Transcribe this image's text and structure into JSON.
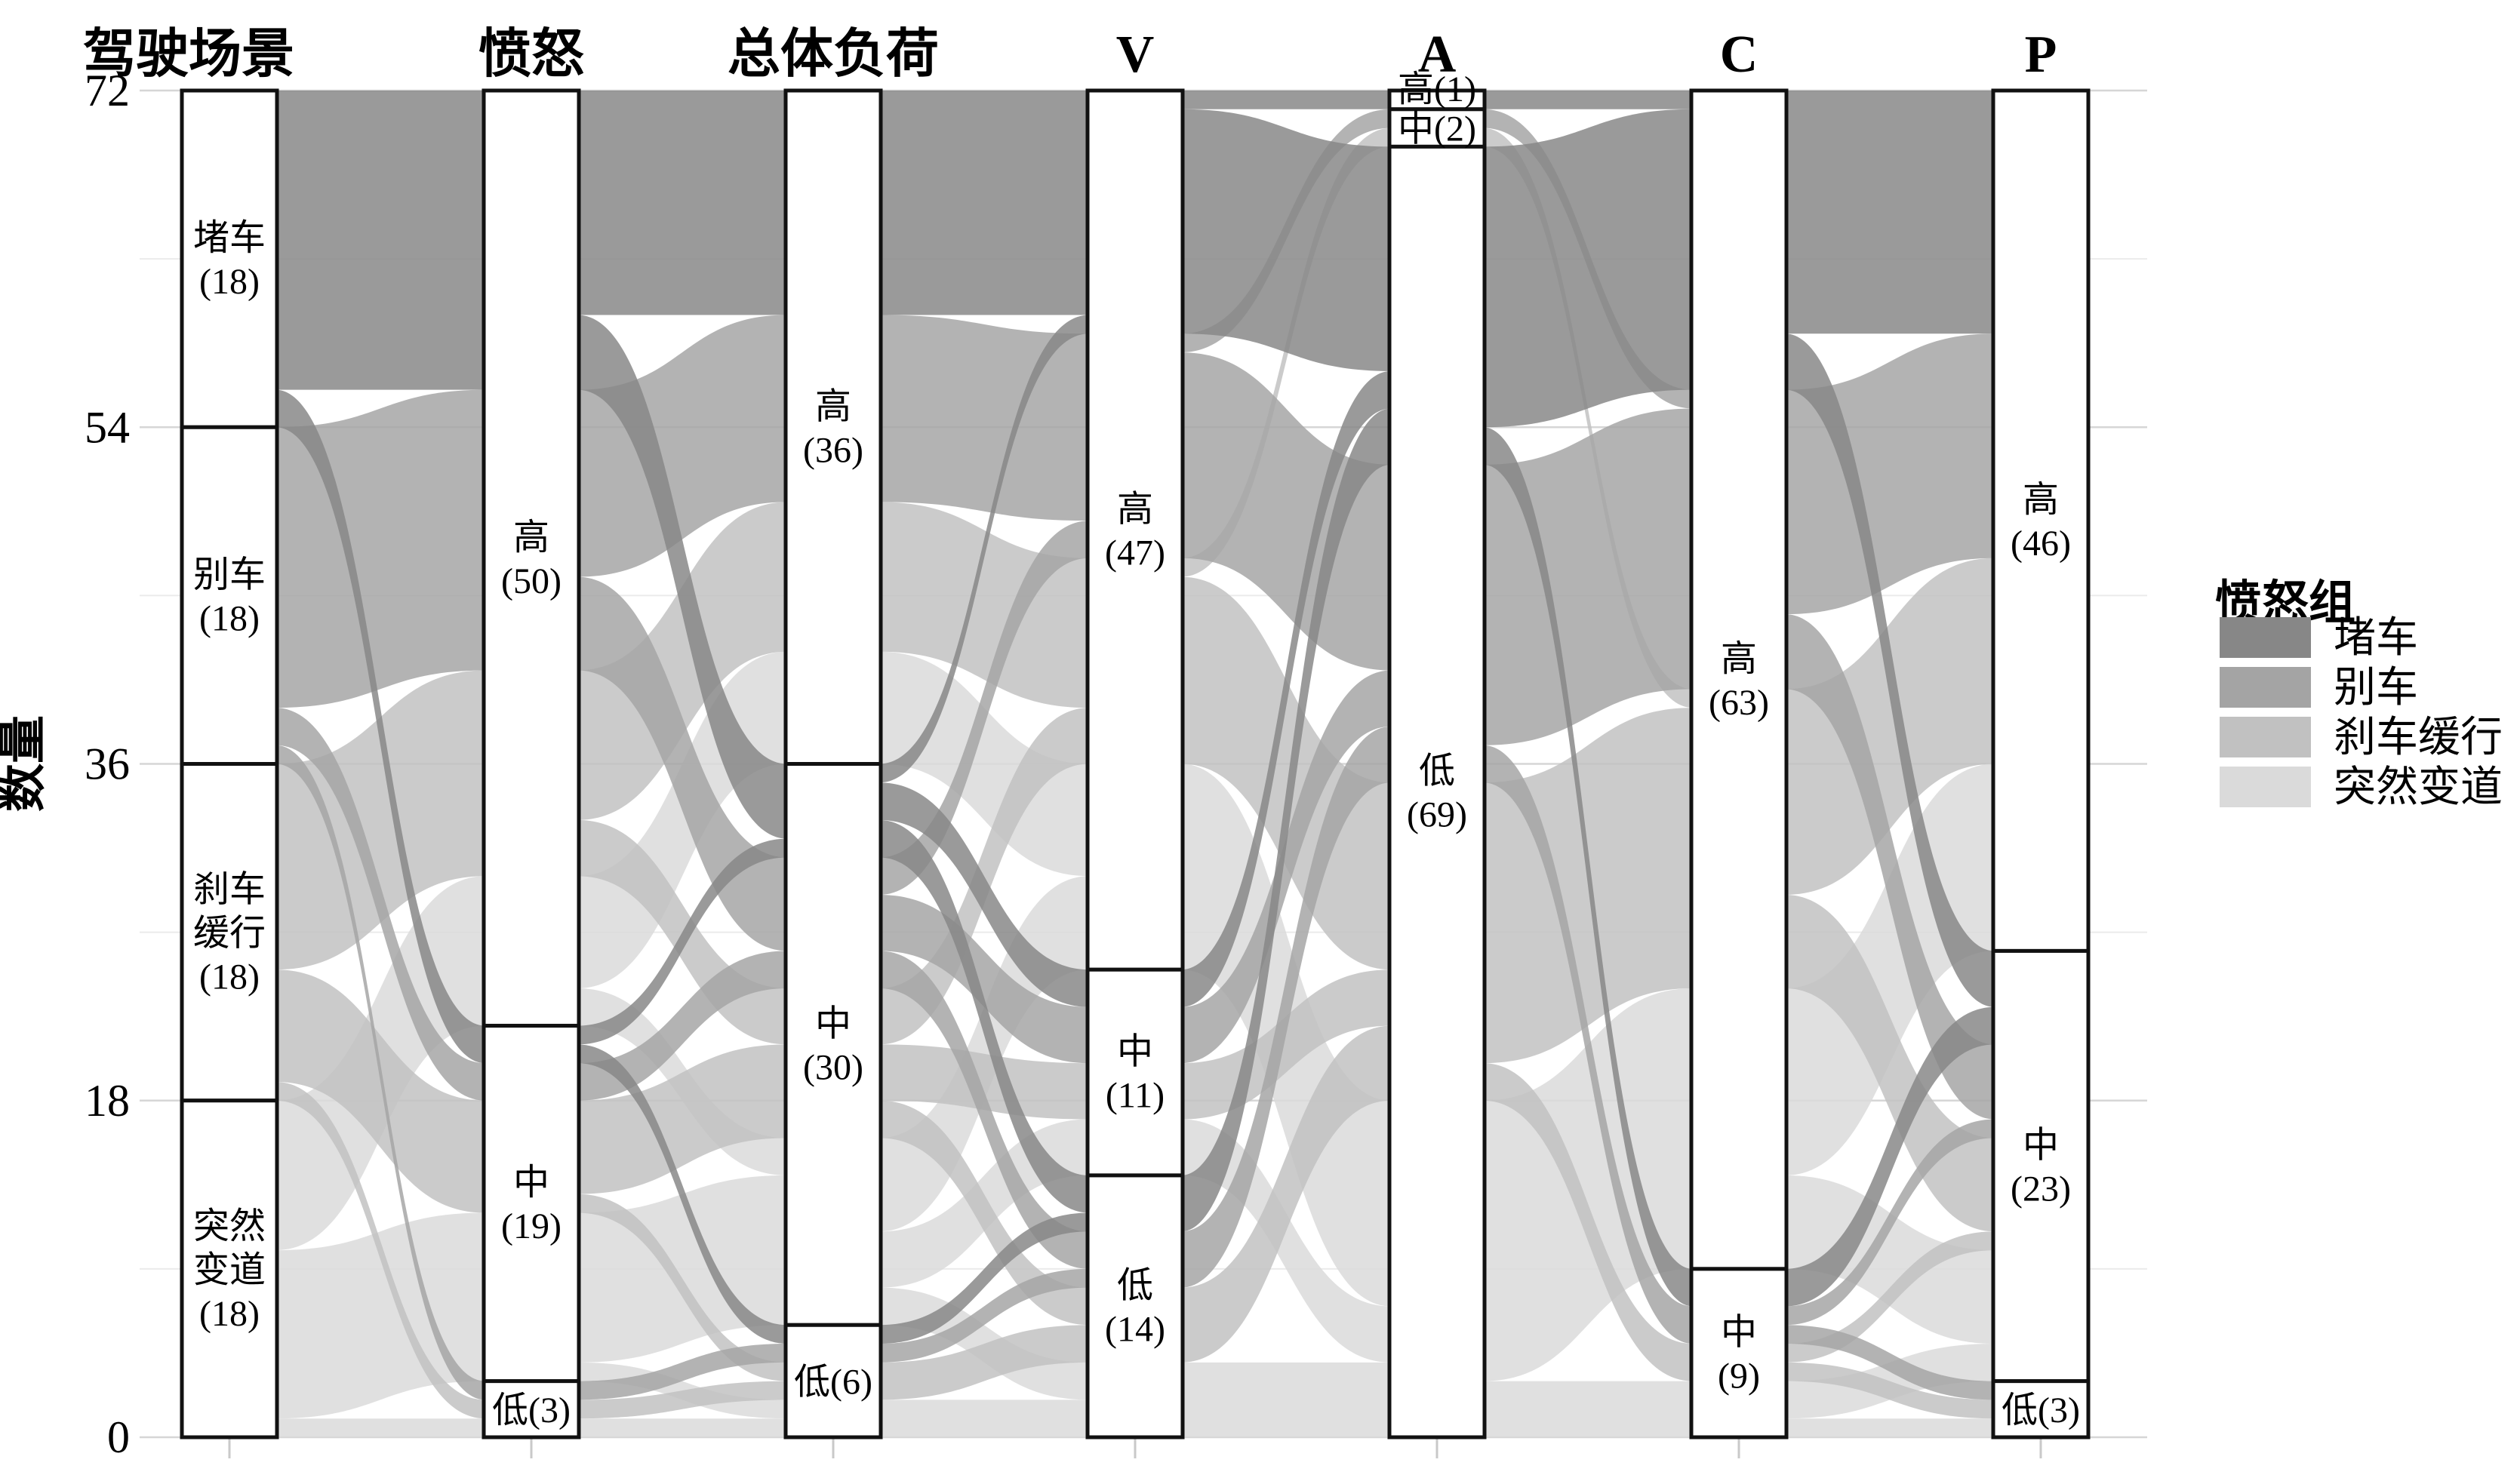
{
  "y_axis": {
    "title": "数量",
    "ticks": [
      0,
      18,
      36,
      54,
      72
    ],
    "tick_labels": [
      "0",
      "18",
      "36",
      "54",
      "72"
    ],
    "minor_ticks": [
      9,
      27,
      45,
      63
    ],
    "max": 72
  },
  "legend": {
    "title": "愤怒组",
    "items": [
      {
        "label": "堵车",
        "color": "#878787"
      },
      {
        "label": "别车",
        "color": "#a4a4a4"
      },
      {
        "label": "刹车缓行",
        "color": "#c1c1c1"
      },
      {
        "label": "突然变道",
        "color": "#dadada"
      }
    ]
  },
  "chart_data": {
    "type": "alluvial",
    "title": "",
    "ylabel": "数量",
    "ylim": [
      0,
      72
    ],
    "grid": "on",
    "legend_position": "right",
    "groups": [
      "堵车",
      "别车",
      "刹车缓行",
      "突然变道"
    ],
    "group_colors": [
      "#878787",
      "#a4a4a4",
      "#c1c1c1",
      "#dadada"
    ],
    "axes": [
      {
        "label": "驾驶场景",
        "nodes": [
          {
            "label": "堵车",
            "value": 18
          },
          {
            "label": "别车",
            "value": 18
          },
          {
            "label": "刹车缓行",
            "value": 18
          },
          {
            "label": "突然变道",
            "value": 18
          }
        ]
      },
      {
        "label": "愤怒",
        "nodes": [
          {
            "label": "高",
            "value": 50
          },
          {
            "label": "中",
            "value": 19
          },
          {
            "label": "低",
            "value": 3
          }
        ]
      },
      {
        "label": "总体负荷",
        "nodes": [
          {
            "label": "高",
            "value": 36
          },
          {
            "label": "中",
            "value": 30
          },
          {
            "label": "低",
            "value": 6
          }
        ]
      },
      {
        "label": "V",
        "nodes": [
          {
            "label": "高",
            "value": 47
          },
          {
            "label": "中",
            "value": 11
          },
          {
            "label": "低",
            "value": 14
          }
        ]
      },
      {
        "label": "A",
        "nodes": [
          {
            "label": "高",
            "value": 1
          },
          {
            "label": "中",
            "value": 2
          },
          {
            "label": "低",
            "value": 69
          }
        ]
      },
      {
        "label": "C",
        "nodes": [
          {
            "label": "高",
            "value": 63
          },
          {
            "label": "中",
            "value": 9
          }
        ]
      },
      {
        "label": "P",
        "nodes": [
          {
            "label": "高",
            "value": 46
          },
          {
            "label": "中",
            "value": 23
          },
          {
            "label": "低",
            "value": 3
          }
        ]
      }
    ],
    "flow_format": [
      "axis_pair_index",
      "from_node_index",
      "to_node_index",
      "group_index",
      "value"
    ],
    "flows": [
      [
        0,
        0,
        0,
        0,
        16
      ],
      [
        0,
        0,
        1,
        0,
        2
      ],
      [
        0,
        1,
        0,
        1,
        15
      ],
      [
        0,
        1,
        1,
        1,
        2
      ],
      [
        0,
        1,
        2,
        1,
        1
      ],
      [
        0,
        2,
        0,
        2,
        11
      ],
      [
        0,
        2,
        1,
        2,
        6
      ],
      [
        0,
        2,
        2,
        2,
        1
      ],
      [
        0,
        3,
        0,
        3,
        8
      ],
      [
        0,
        3,
        1,
        3,
        9
      ],
      [
        0,
        3,
        2,
        3,
        1
      ],
      [
        1,
        0,
        0,
        0,
        12
      ],
      [
        1,
        0,
        1,
        0,
        4
      ],
      [
        1,
        1,
        1,
        0,
        1
      ],
      [
        1,
        1,
        2,
        0,
        1
      ],
      [
        1,
        0,
        0,
        1,
        10
      ],
      [
        1,
        0,
        1,
        1,
        5
      ],
      [
        1,
        1,
        1,
        1,
        2
      ],
      [
        1,
        2,
        2,
        1,
        1
      ],
      [
        1,
        0,
        0,
        2,
        8
      ],
      [
        1,
        0,
        1,
        2,
        3
      ],
      [
        1,
        1,
        1,
        2,
        5
      ],
      [
        1,
        1,
        2,
        2,
        1
      ],
      [
        1,
        2,
        2,
        2,
        1
      ],
      [
        1,
        0,
        0,
        3,
        6
      ],
      [
        1,
        0,
        1,
        3,
        2
      ],
      [
        1,
        1,
        1,
        3,
        8
      ],
      [
        1,
        1,
        2,
        3,
        1
      ],
      [
        1,
        2,
        2,
        3,
        1
      ],
      [
        2,
        0,
        0,
        0,
        12
      ],
      [
        2,
        1,
        0,
        0,
        1
      ],
      [
        2,
        1,
        1,
        0,
        2
      ],
      [
        2,
        1,
        2,
        0,
        2
      ],
      [
        2,
        2,
        2,
        0,
        1
      ],
      [
        2,
        0,
        0,
        1,
        10
      ],
      [
        2,
        1,
        0,
        1,
        2
      ],
      [
        2,
        1,
        1,
        1,
        3
      ],
      [
        2,
        1,
        2,
        1,
        2
      ],
      [
        2,
        2,
        2,
        1,
        1
      ],
      [
        2,
        0,
        0,
        2,
        8
      ],
      [
        2,
        1,
        0,
        2,
        3
      ],
      [
        2,
        1,
        1,
        2,
        3
      ],
      [
        2,
        1,
        2,
        2,
        2
      ],
      [
        2,
        2,
        2,
        2,
        2
      ],
      [
        2,
        0,
        0,
        3,
        6
      ],
      [
        2,
        1,
        0,
        3,
        5
      ],
      [
        2,
        1,
        1,
        3,
        3
      ],
      [
        2,
        1,
        2,
        3,
        2
      ],
      [
        2,
        2,
        2,
        3,
        2
      ],
      [
        3,
        0,
        0,
        0,
        1
      ],
      [
        3,
        0,
        2,
        0,
        12
      ],
      [
        3,
        1,
        2,
        0,
        2
      ],
      [
        3,
        2,
        2,
        0,
        3
      ],
      [
        3,
        0,
        1,
        1,
        1
      ],
      [
        3,
        0,
        2,
        1,
        11
      ],
      [
        3,
        1,
        2,
        1,
        3
      ],
      [
        3,
        2,
        2,
        1,
        3
      ],
      [
        3,
        0,
        1,
        2,
        1
      ],
      [
        3,
        0,
        2,
        2,
        10
      ],
      [
        3,
        1,
        2,
        2,
        3
      ],
      [
        3,
        2,
        2,
        2,
        4
      ],
      [
        3,
        0,
        2,
        3,
        11
      ],
      [
        3,
        1,
        2,
        3,
        3
      ],
      [
        3,
        2,
        2,
        3,
        4
      ],
      [
        4,
        0,
        0,
        0,
        1
      ],
      [
        4,
        2,
        0,
        0,
        15
      ],
      [
        4,
        2,
        1,
        0,
        2
      ],
      [
        4,
        1,
        0,
        1,
        1
      ],
      [
        4,
        2,
        0,
        1,
        15
      ],
      [
        4,
        2,
        1,
        1,
        2
      ],
      [
        4,
        1,
        0,
        2,
        1
      ],
      [
        4,
        2,
        0,
        2,
        15
      ],
      [
        4,
        2,
        1,
        2,
        2
      ],
      [
        4,
        2,
        0,
        3,
        15
      ],
      [
        4,
        2,
        1,
        3,
        3
      ],
      [
        5,
        0,
        0,
        0,
        13
      ],
      [
        5,
        0,
        1,
        0,
        3
      ],
      [
        5,
        1,
        1,
        0,
        2
      ],
      [
        5,
        0,
        0,
        1,
        12
      ],
      [
        5,
        0,
        1,
        1,
        4
      ],
      [
        5,
        1,
        1,
        1,
        1
      ],
      [
        5,
        1,
        2,
        1,
        1
      ],
      [
        5,
        0,
        0,
        2,
        11
      ],
      [
        5,
        0,
        1,
        2,
        5
      ],
      [
        5,
        1,
        1,
        2,
        1
      ],
      [
        5,
        1,
        2,
        2,
        1
      ],
      [
        5,
        0,
        0,
        3,
        10
      ],
      [
        5,
        0,
        1,
        3,
        5
      ],
      [
        5,
        1,
        1,
        3,
        2
      ],
      [
        5,
        1,
        2,
        3,
        1
      ]
    ]
  }
}
